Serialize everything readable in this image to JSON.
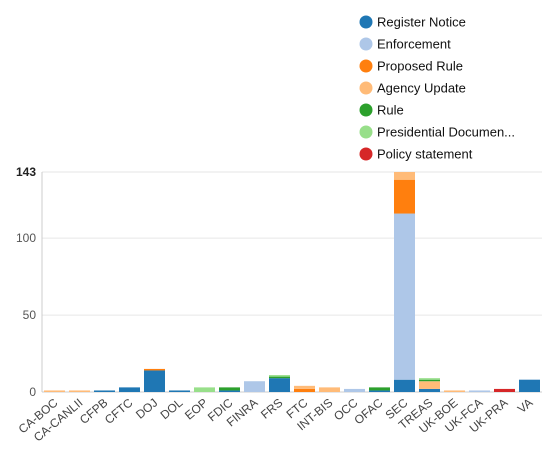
{
  "chart_data": {
    "type": "bar",
    "stacked": true,
    "categories": [
      "CA-BOC",
      "CA-CANLII",
      "CFPB",
      "CFTC",
      "DOJ",
      "DOL",
      "EOP",
      "FDIC",
      "FINRA",
      "FRS",
      "FTC",
      "INT-BIS",
      "OCC",
      "OFAC",
      "SEC",
      "TREAS",
      "UK-BOE",
      "UK-FCA",
      "UK-PRA",
      "VA"
    ],
    "series": [
      {
        "name": "Register Notice",
        "color": "#1f77b4",
        "values": [
          0,
          0,
          1,
          3,
          14,
          1,
          0,
          1,
          0,
          9,
          0,
          0,
          0,
          1,
          8,
          2,
          0,
          0,
          0,
          8
        ]
      },
      {
        "name": "Enforcement",
        "color": "#aec7e8",
        "values": [
          0,
          0,
          0,
          0,
          0,
          0,
          0,
          0,
          7,
          0,
          0,
          0,
          2,
          0,
          108,
          0,
          0,
          1,
          0,
          0
        ]
      },
      {
        "name": "Proposed Rule",
        "color": "#ff7f0e",
        "values": [
          0,
          0,
          0,
          0,
          1,
          0,
          0,
          0,
          0,
          0,
          2,
          0,
          0,
          0,
          22,
          0,
          0,
          0,
          0,
          0
        ]
      },
      {
        "name": "Agency Update",
        "color": "#ffbb78",
        "values": [
          1,
          1,
          0,
          0,
          0,
          0,
          0,
          0,
          0,
          0,
          2,
          3,
          0,
          0,
          5,
          5,
          1,
          0,
          0,
          0
        ]
      },
      {
        "name": "Rule",
        "color": "#2ca02c",
        "values": [
          0,
          0,
          0,
          0,
          0,
          0,
          0,
          2,
          0,
          1,
          0,
          0,
          0,
          2,
          0,
          1,
          0,
          0,
          0,
          0
        ]
      },
      {
        "name": "Presidential Documen...",
        "color": "#98df8a",
        "values": [
          0,
          0,
          0,
          0,
          0,
          0,
          3,
          0,
          0,
          1,
          0,
          0,
          0,
          0,
          0,
          1,
          0,
          0,
          0,
          0
        ]
      },
      {
        "name": "Policy statement",
        "color": "#d62728",
        "values": [
          0,
          0,
          0,
          0,
          0,
          0,
          0,
          0,
          0,
          0,
          0,
          0,
          0,
          0,
          0,
          0,
          0,
          0,
          2,
          0
        ]
      }
    ],
    "yticks": [
      0,
      50,
      100,
      143
    ],
    "ylim": [
      0,
      143
    ],
    "grid": true,
    "legend_position": "top-right"
  }
}
